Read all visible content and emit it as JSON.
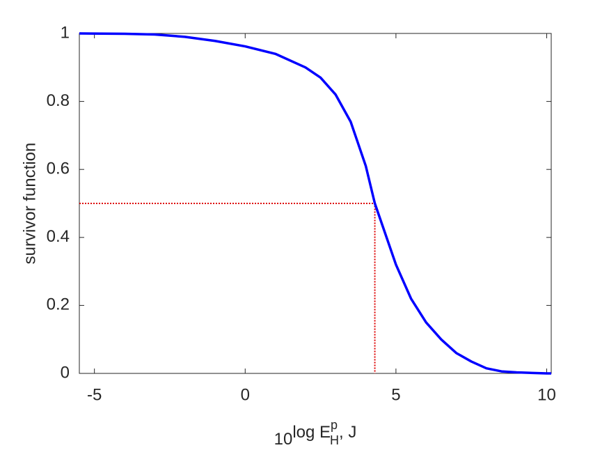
{
  "chart_data": {
    "type": "line",
    "ylabel": "survivor function",
    "xlabel": {
      "lead_subscript": "10",
      "base": "log E",
      "superscript": "p",
      "subscript": "H",
      "tail": ", J"
    },
    "x": [
      -5.5,
      -4,
      -3,
      -2,
      -1,
      0,
      1,
      2,
      2.5,
      3,
      3.5,
      4,
      4.3,
      5,
      5.5,
      6,
      6.5,
      7,
      7.5,
      8,
      8.5,
      9,
      10,
      10.15
    ],
    "series": [
      {
        "color": "#0000ff",
        "values": [
          1.0,
          0.999,
          0.997,
          0.99,
          0.978,
          0.962,
          0.94,
          0.9,
          0.87,
          0.82,
          0.74,
          0.61,
          0.5,
          0.32,
          0.22,
          0.15,
          0.1,
          0.06,
          0.035,
          0.015,
          0.006,
          0.003,
          0.0,
          0.0
        ]
      }
    ],
    "median": {
      "x": 4.3,
      "y": 0.5,
      "color": "#dd0000"
    },
    "xlim": [
      -5.5,
      10.15
    ],
    "ylim": [
      0,
      1
    ],
    "xticks": [
      -5,
      0,
      5,
      10
    ],
    "yticks": [
      0,
      0.2,
      0.4,
      0.6,
      0.8,
      1
    ],
    "grid": false
  }
}
